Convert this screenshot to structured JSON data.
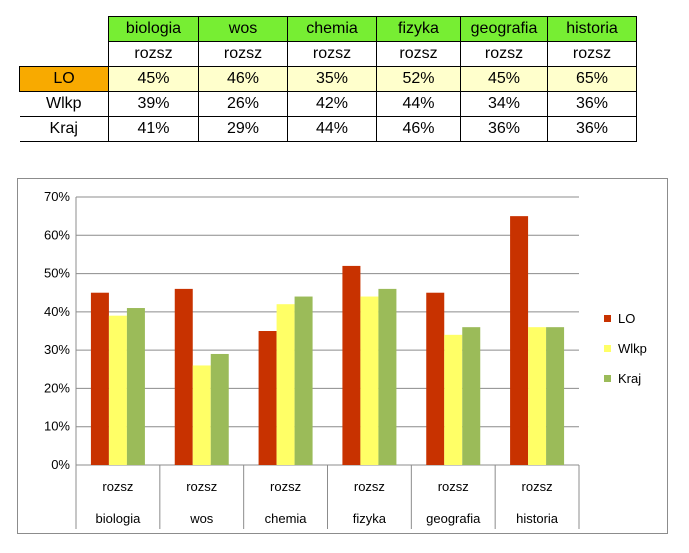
{
  "table": {
    "subjects": [
      "biologia",
      "wos",
      "chemia",
      "fizyka",
      "geografia",
      "historia"
    ],
    "levels": [
      "rozsz",
      "rozsz",
      "rozsz",
      "rozsz",
      "rozsz",
      "rozsz"
    ],
    "rows": [
      {
        "label": "LO",
        "values": [
          "45%",
          "46%",
          "35%",
          "52%",
          "45%",
          "65%"
        ]
      },
      {
        "label": "Wlkp",
        "values": [
          "39%",
          "26%",
          "42%",
          "44%",
          "34%",
          "36%"
        ]
      },
      {
        "label": "Kraj",
        "values": [
          "41%",
          "29%",
          "44%",
          "46%",
          "36%",
          "36%"
        ]
      }
    ]
  },
  "chart_data": {
    "type": "bar",
    "categories": [
      "biologia",
      "wos",
      "chemia",
      "fizyka",
      "geografia",
      "historia"
    ],
    "category_levels": [
      "rozsz",
      "rozsz",
      "rozsz",
      "rozsz",
      "rozsz",
      "rozsz"
    ],
    "series": [
      {
        "name": "LO",
        "color": "#c83200",
        "values": [
          45,
          46,
          35,
          52,
          45,
          65
        ]
      },
      {
        "name": "Wlkp",
        "color": "#ffff66",
        "values": [
          39,
          26,
          42,
          44,
          34,
          36
        ]
      },
      {
        "name": "Kraj",
        "color": "#9bbb59",
        "values": [
          41,
          29,
          44,
          46,
          36,
          36
        ]
      }
    ],
    "ylim": [
      0,
      70
    ],
    "yticks": [
      "0%",
      "10%",
      "20%",
      "30%",
      "40%",
      "50%",
      "60%",
      "70%"
    ],
    "grid": true,
    "legend_position": "right",
    "title": "",
    "xlabel": "",
    "ylabel": ""
  }
}
